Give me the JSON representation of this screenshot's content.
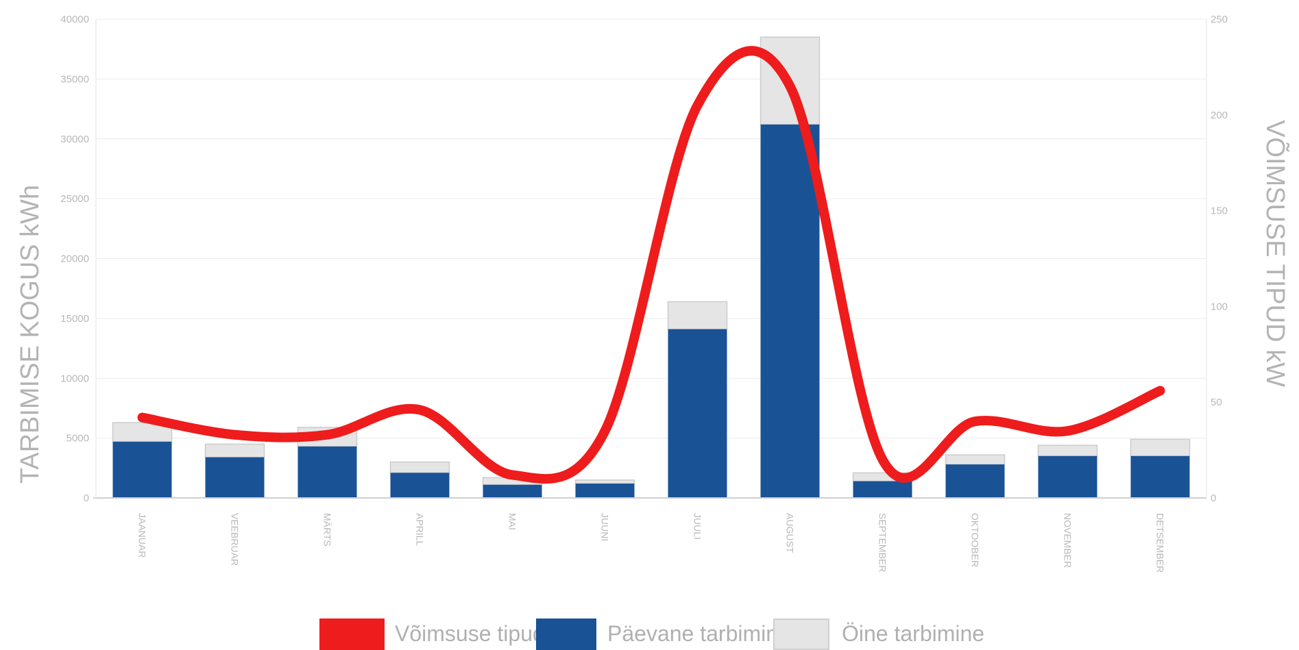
{
  "chart_data": {
    "type": "bar",
    "categories": [
      "JAANUAR",
      "VEEBRUAR",
      "MÄRTS",
      "APRILL",
      "MAI",
      "JUUNI",
      "JUULI",
      "AUGUST",
      "SEPTEMBER",
      "OKTOOBER",
      "NOVEMBER",
      "DETSEMBER"
    ],
    "ylabel": "TARBIMISE KOGUS kWh",
    "ylabel_right": "VÕIMSUSE TIPUD kW",
    "ylim": [
      0,
      40000
    ],
    "ylim_right": [
      0,
      250
    ],
    "yticks": [
      "0",
      "5000",
      "10000",
      "15000",
      "20000",
      "25000",
      "30000",
      "35000",
      "40000"
    ],
    "yticks_right": [
      "0",
      "50",
      "100",
      "150",
      "200",
      "250"
    ],
    "stacked": true,
    "grid": true,
    "legend_position": "bottom",
    "series": [
      {
        "name": "Päevane tarbimine",
        "type": "bar",
        "axis": "left",
        "color": "#1a5296",
        "values": [
          4700,
          3400,
          4300,
          2100,
          1100,
          1200,
          14100,
          31200,
          1400,
          2800,
          3500,
          3500
        ]
      },
      {
        "name": "Öine tarbimine",
        "type": "bar",
        "axis": "left",
        "color": "#e5e5e5",
        "values": [
          1600,
          1100,
          1600,
          900,
          600,
          300,
          2300,
          7300,
          700,
          800,
          900,
          1400
        ]
      },
      {
        "name": "Võimsuse tipud",
        "type": "line",
        "axis": "right",
        "color": "#ee1c1c",
        "values": [
          42,
          33,
          33,
          46,
          12,
          35,
          205,
          215,
          20,
          40,
          35,
          56
        ]
      }
    ]
  },
  "legend": {
    "items": [
      {
        "label": "Võimsuse tipud",
        "color": "#ee1c1c"
      },
      {
        "label": "Päevane tarbimine",
        "color": "#1a5296"
      },
      {
        "label": "Öine tarbimine",
        "color": "#e5e5e5"
      }
    ]
  }
}
